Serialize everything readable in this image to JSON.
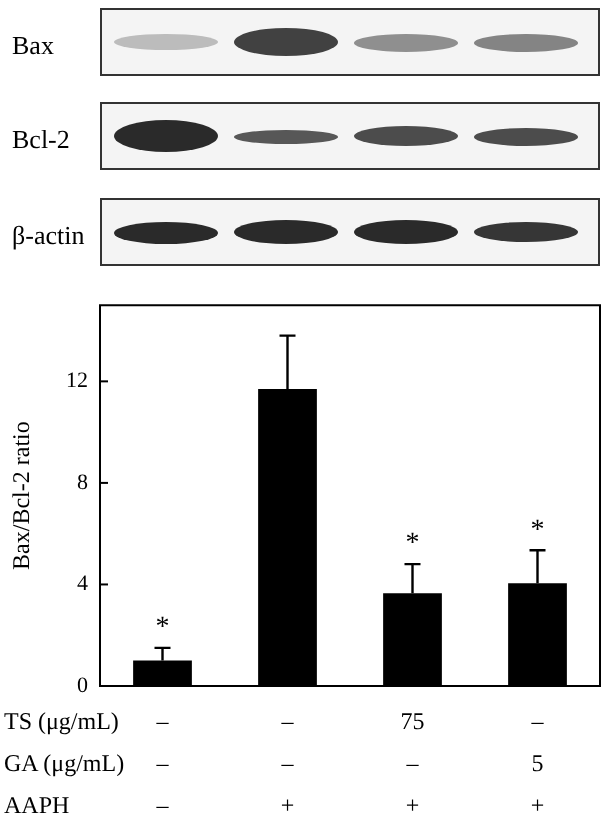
{
  "chart_data": {
    "type": "bar",
    "ylabel": "Bax/Bcl-2 ratio",
    "categories": [
      "–\n–\n–",
      "–\n–\n+",
      "75\n–\n+",
      "–\n5\n+"
    ],
    "values": [
      1.0,
      11.7,
      3.65,
      4.05
    ],
    "errors": [
      [
        1.0,
        1.5
      ],
      [
        11.7,
        13.8
      ],
      [
        3.65,
        4.8
      ],
      [
        4.05,
        5.35
      ]
    ],
    "color": "#000000",
    "ylim": [
      0,
      15
    ],
    "yticks": [
      0,
      4,
      8,
      12
    ],
    "grid": false,
    "legend": false,
    "annotations": [
      "Bax",
      "Bcl-2",
      "β-actin",
      "TS (μg/mL)",
      "GA (μg/mL)",
      "AAPH",
      {
        "text": "*",
        "x": "–\n–\n–",
        "y": 1.5
      },
      {
        "text": "*",
        "x": "75\n–\n+",
        "y": 4.8
      },
      {
        "text": "*",
        "x": "–\n5\n+",
        "y": 5.35
      }
    ]
  }
}
